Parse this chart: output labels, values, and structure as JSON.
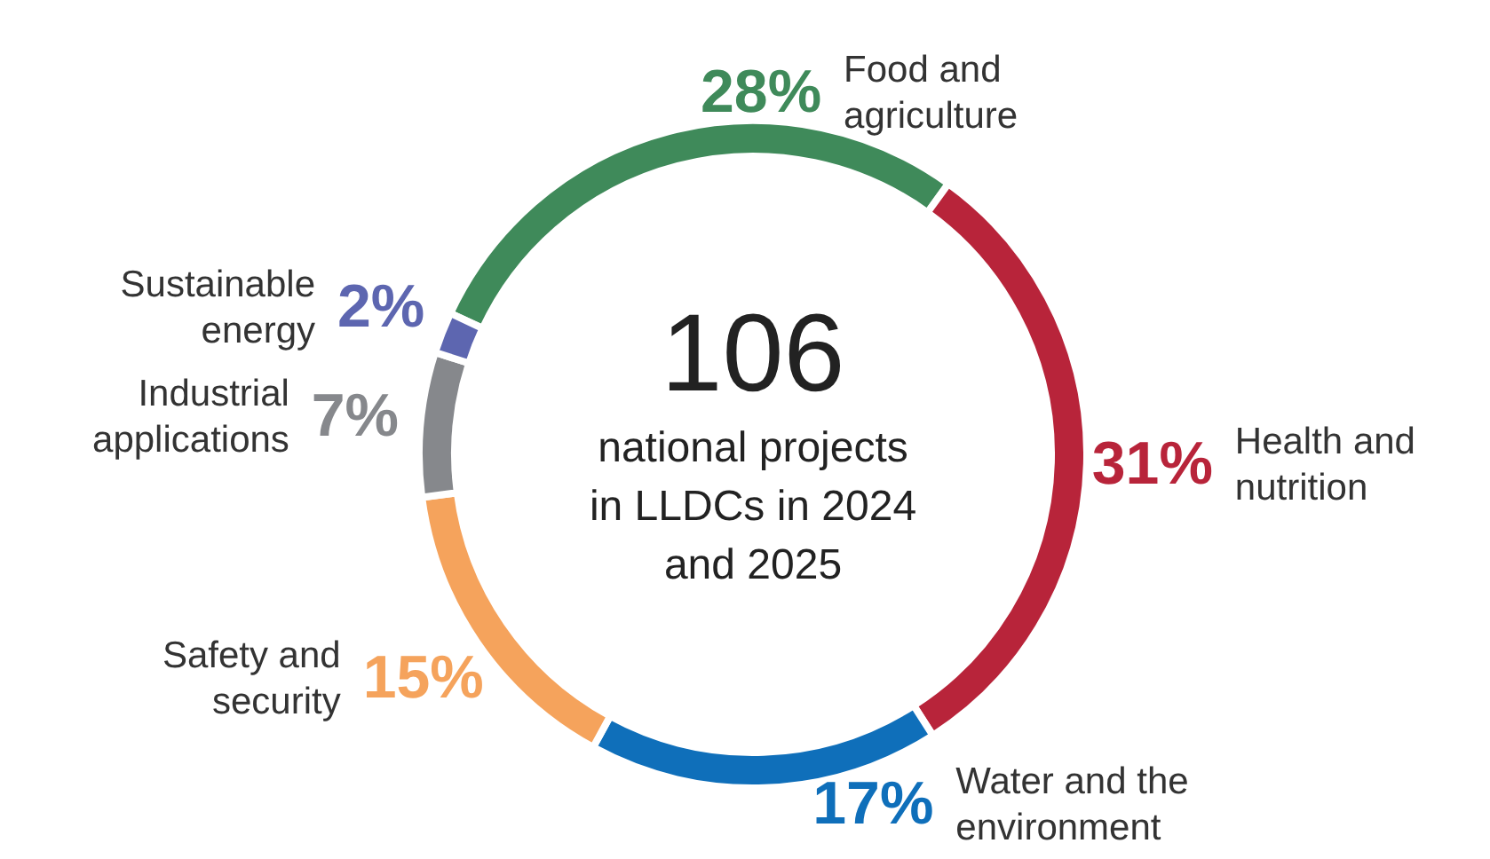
{
  "chart_data": {
    "type": "donut",
    "categories": [
      "Food and agriculture",
      "Health and nutrition",
      "Water and the environment",
      "Safety and security",
      "Industrial applications",
      "Sustainable energy"
    ],
    "values": [
      28,
      31,
      17,
      15,
      7,
      2
    ],
    "value_labels": [
      "28%",
      "31%",
      "17%",
      "15%",
      "7%",
      "2%"
    ],
    "colors": [
      "#3f8a5a",
      "#b8243a",
      "#0f6fba",
      "#f5a35c",
      "#86888c",
      "#5d66b0"
    ],
    "annotations": [
      "106",
      "national projects in LLDCs in 2024 and 2025"
    ]
  }
}
